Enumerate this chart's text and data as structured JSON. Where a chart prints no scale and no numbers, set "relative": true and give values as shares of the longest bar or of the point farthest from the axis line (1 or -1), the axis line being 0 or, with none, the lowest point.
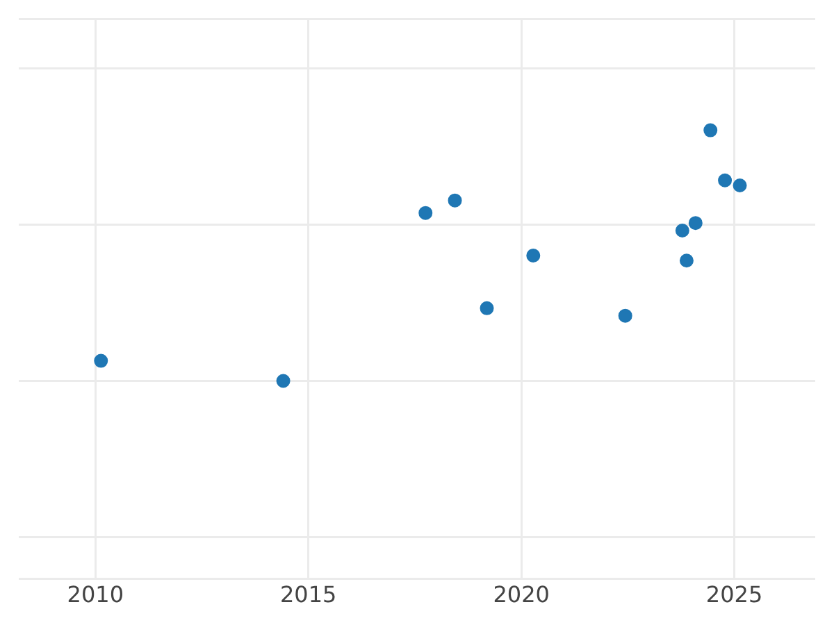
{
  "chart_data": {
    "type": "scatter",
    "relative": true,
    "x": [
      2010.13,
      2014.41,
      2017.75,
      2018.44,
      2019.19,
      2020.28,
      2022.44,
      2023.78,
      2023.88,
      2024.09,
      2024.44,
      2024.78,
      2025.13
    ],
    "values": [
      0.08,
      0,
      0.67,
      0.72,
      0.29,
      0.5,
      0.26,
      0.6,
      0.48,
      0.63,
      1,
      0.8,
      0.78
    ],
    "color": "#1f77b4",
    "marker": "circle",
    "xlim": [
      2008.2,
      2026.9
    ],
    "xticks": [
      2010,
      2015,
      2020,
      2025
    ],
    "grid": true
  }
}
